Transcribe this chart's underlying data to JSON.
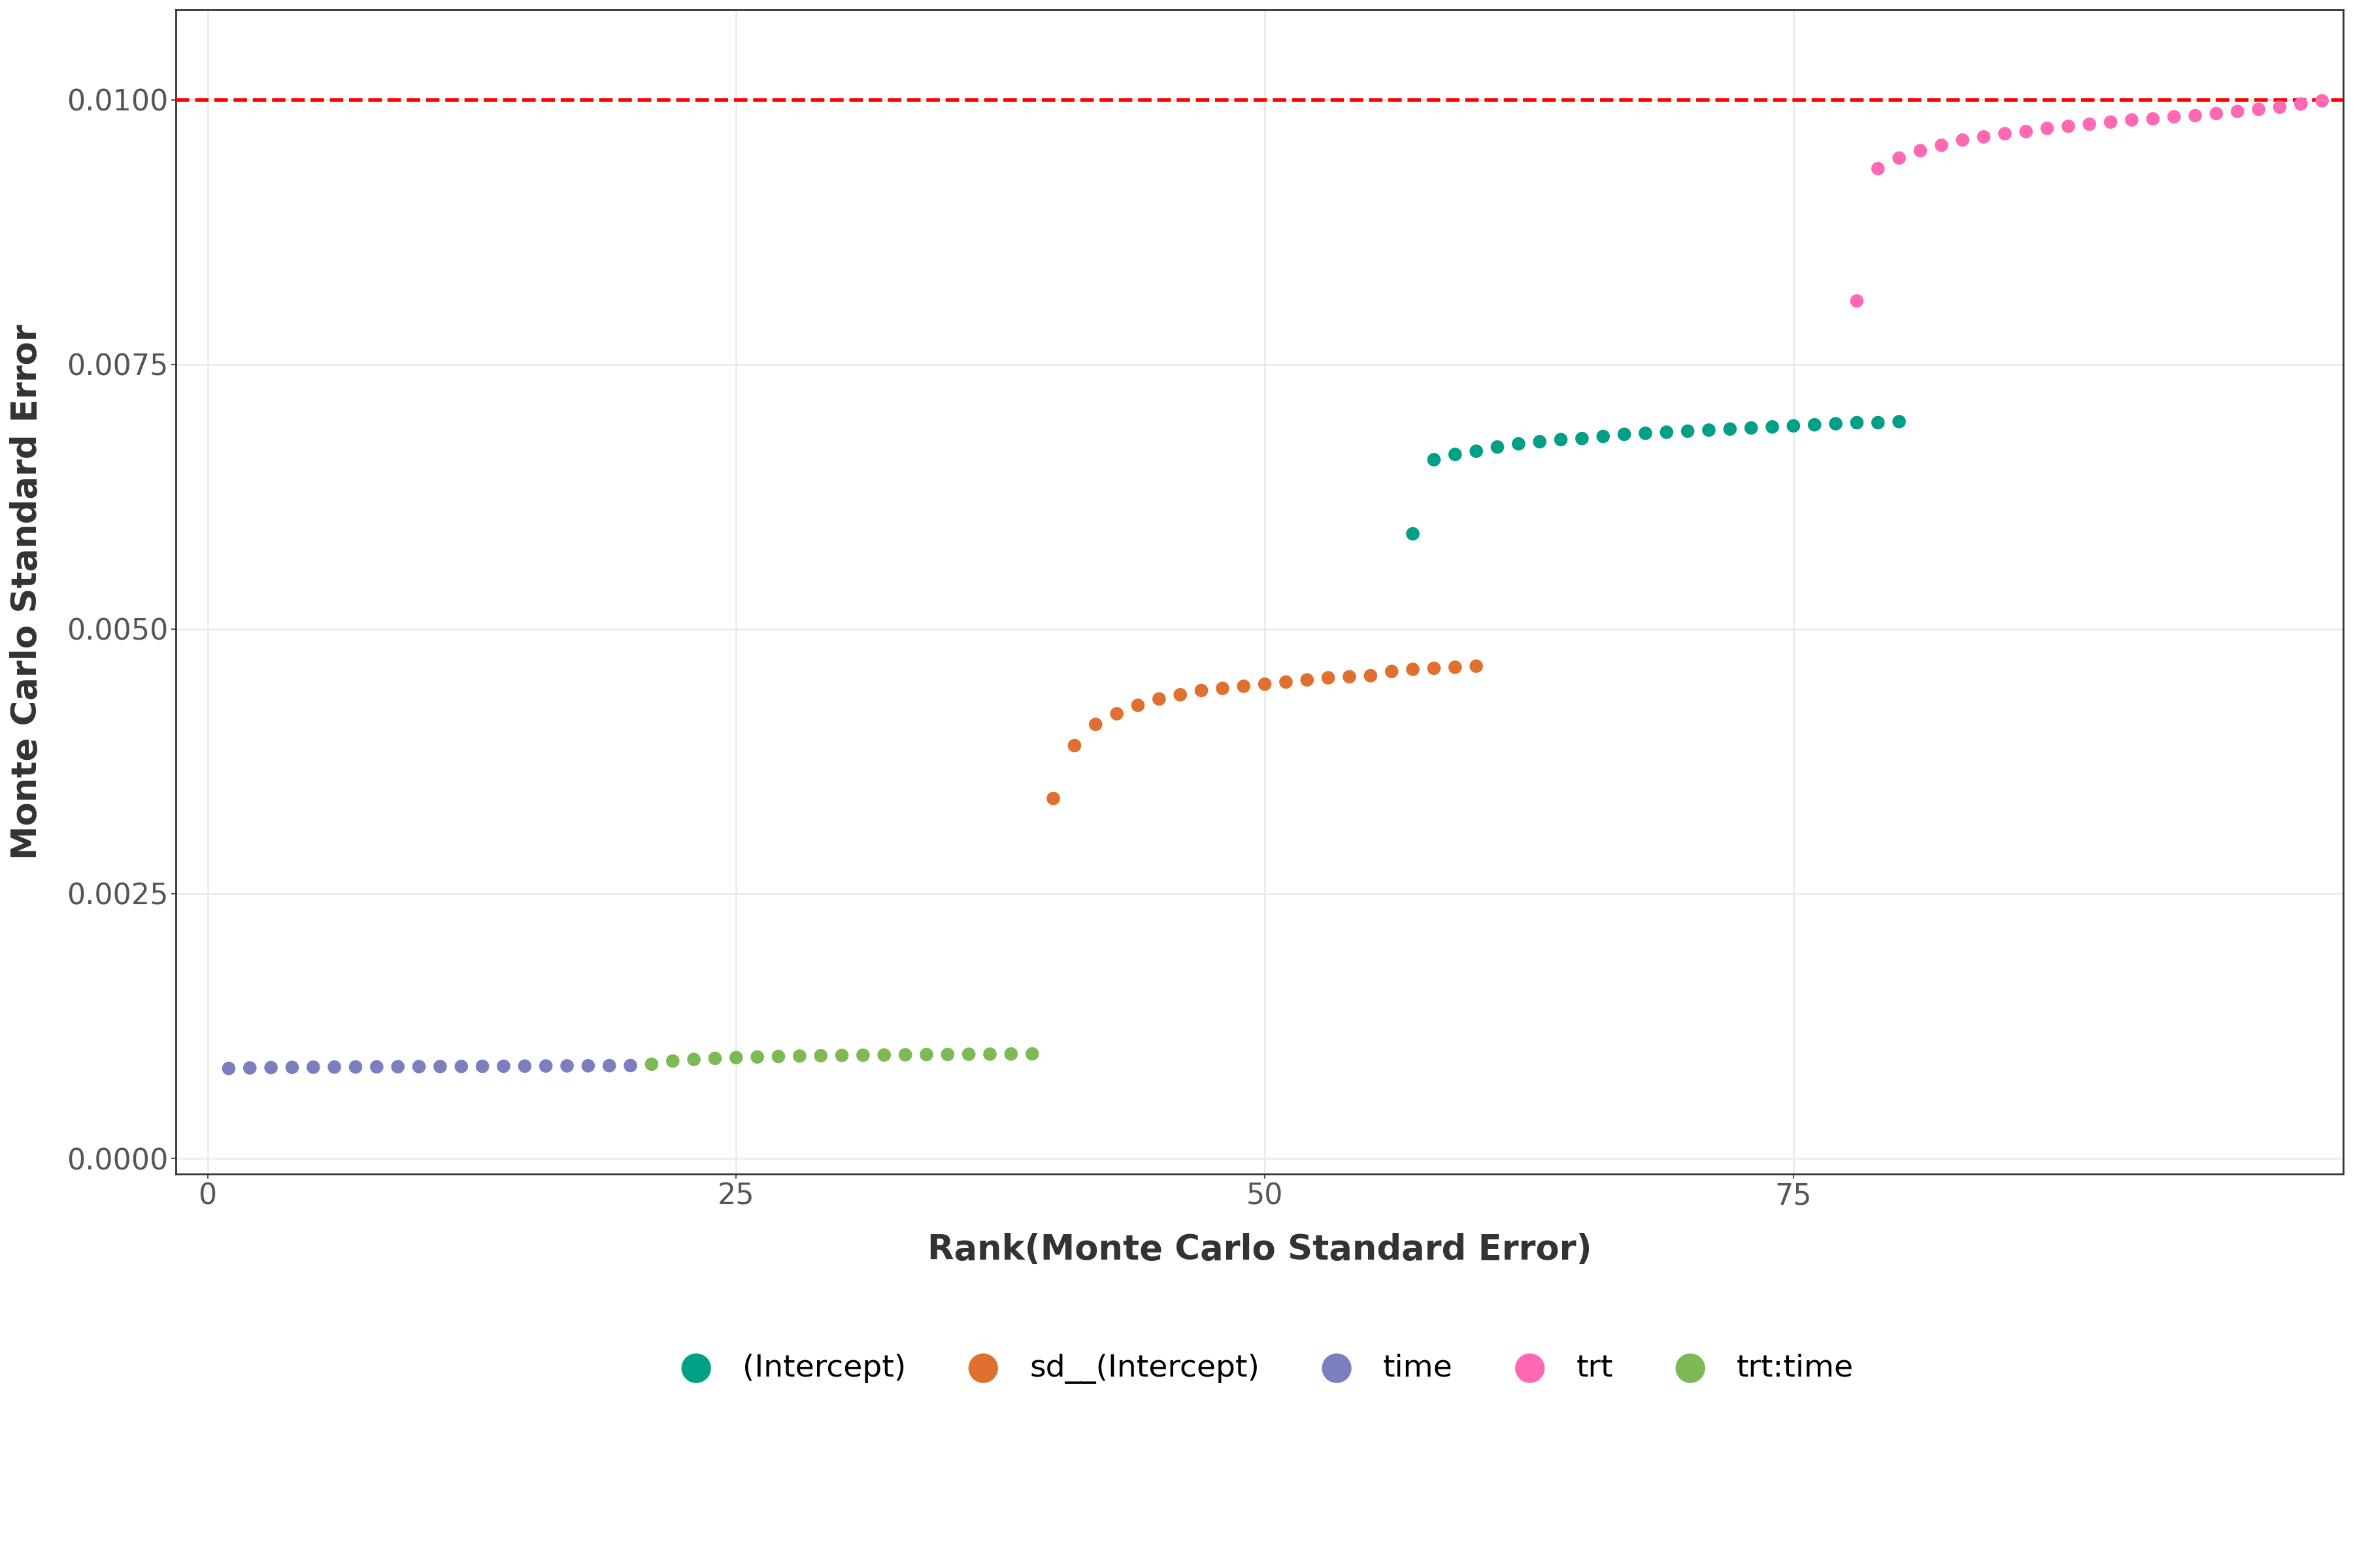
{
  "title": "",
  "xlabel": "Rank(Monte Carlo Standard Error)",
  "ylabel": "Monte Carlo Standard Error",
  "hline_y": 0.01,
  "hline_color": "#FF0000",
  "xlim": [
    -1.5,
    101
  ],
  "ylim": [
    -0.00015,
    0.01085
  ],
  "background_color": "#FFFFFF",
  "panel_background": "#FFFFFF",
  "grid_color": "#EBEBEB",
  "series": [
    {
      "name": "(Intercept)",
      "color": "#00A087",
      "points": [
        [
          57,
          0.0059
        ],
        [
          58,
          0.0066
        ],
        [
          59,
          0.00665
        ],
        [
          60,
          0.00668
        ],
        [
          61,
          0.00672
        ],
        [
          62,
          0.00675
        ],
        [
          63,
          0.00677
        ],
        [
          64,
          0.00679
        ],
        [
          65,
          0.0068
        ],
        [
          66,
          0.00682
        ],
        [
          67,
          0.00684
        ],
        [
          68,
          0.00685
        ],
        [
          69,
          0.00686
        ],
        [
          70,
          0.00687
        ],
        [
          71,
          0.00688
        ],
        [
          72,
          0.00689
        ],
        [
          73,
          0.0069
        ],
        [
          74,
          0.00691
        ],
        [
          75,
          0.00692
        ],
        [
          76,
          0.00693
        ],
        [
          77,
          0.00694
        ],
        [
          78,
          0.00695
        ],
        [
          79,
          0.00695
        ],
        [
          80,
          0.00696
        ]
      ]
    },
    {
      "name": "sd__(Intercept)",
      "color": "#E07030",
      "points": [
        [
          40,
          0.0034
        ],
        [
          41,
          0.0039
        ],
        [
          42,
          0.0041
        ],
        [
          43,
          0.0042
        ],
        [
          44,
          0.00428
        ],
        [
          45,
          0.00434
        ],
        [
          46,
          0.00438
        ],
        [
          47,
          0.00442
        ],
        [
          48,
          0.00444
        ],
        [
          49,
          0.00446
        ],
        [
          50,
          0.00448
        ],
        [
          51,
          0.0045
        ],
        [
          52,
          0.00452
        ],
        [
          53,
          0.00454
        ],
        [
          54,
          0.00455
        ],
        [
          55,
          0.00456
        ],
        [
          56,
          0.0046
        ],
        [
          57,
          0.00462
        ],
        [
          58,
          0.00463
        ],
        [
          59,
          0.00464
        ],
        [
          60,
          0.00465
        ]
      ]
    },
    {
      "name": "time",
      "color": "#7B7FBF",
      "points": [
        [
          1,
          0.00085
        ],
        [
          2,
          0.000855
        ],
        [
          3,
          0.000858
        ],
        [
          4,
          0.00086
        ],
        [
          5,
          0.000862
        ],
        [
          6,
          0.000863
        ],
        [
          7,
          0.000864
        ],
        [
          8,
          0.000865
        ],
        [
          9,
          0.000866
        ],
        [
          10,
          0.000867
        ],
        [
          11,
          0.000868
        ],
        [
          12,
          0.000869
        ],
        [
          13,
          0.00087
        ],
        [
          14,
          0.000871
        ],
        [
          15,
          0.000872
        ],
        [
          16,
          0.000873
        ],
        [
          17,
          0.000874
        ],
        [
          18,
          0.000875
        ],
        [
          19,
          0.000876
        ],
        [
          20,
          0.000877
        ]
      ]
    },
    {
      "name": "trt",
      "color": "#FF69B4",
      "points": [
        [
          78,
          0.0081
        ],
        [
          79,
          0.00935
        ],
        [
          80,
          0.00945
        ],
        [
          81,
          0.00952
        ],
        [
          82,
          0.00957
        ],
        [
          83,
          0.00962
        ],
        [
          84,
          0.00965
        ],
        [
          85,
          0.00968
        ],
        [
          86,
          0.0097
        ],
        [
          87,
          0.00973
        ],
        [
          88,
          0.00975
        ],
        [
          89,
          0.00977
        ],
        [
          90,
          0.00979
        ],
        [
          91,
          0.00981
        ],
        [
          92,
          0.00982
        ],
        [
          93,
          0.00984
        ],
        [
          94,
          0.00985
        ],
        [
          95,
          0.00987
        ],
        [
          96,
          0.00989
        ],
        [
          97,
          0.00991
        ],
        [
          98,
          0.00993
        ],
        [
          99,
          0.00996
        ],
        [
          100,
          0.00999
        ]
      ]
    },
    {
      "name": "trt:time",
      "color": "#7DB954",
      "points": [
        [
          21,
          0.00089
        ],
        [
          22,
          0.00092
        ],
        [
          23,
          0.000935
        ],
        [
          24,
          0.000945
        ],
        [
          25,
          0.000952
        ],
        [
          26,
          0.000958
        ],
        [
          27,
          0.000963
        ],
        [
          28,
          0.000967
        ],
        [
          29,
          0.00097
        ],
        [
          30,
          0.000973
        ],
        [
          31,
          0.000975
        ],
        [
          32,
          0.000977
        ],
        [
          33,
          0.000979
        ],
        [
          34,
          0.000981
        ],
        [
          35,
          0.000982
        ],
        [
          36,
          0.000984
        ],
        [
          37,
          0.000985
        ],
        [
          38,
          0.000986
        ],
        [
          39,
          0.000987
        ]
      ]
    }
  ],
  "yticks": [
    0.0,
    0.0025,
    0.005,
    0.0075,
    0.01
  ],
  "xticks": [
    0,
    25,
    50,
    75
  ],
  "point_size": 220,
  "legend_fontsize": 34,
  "axis_label_fontsize": 38,
  "tick_fontsize": 32
}
